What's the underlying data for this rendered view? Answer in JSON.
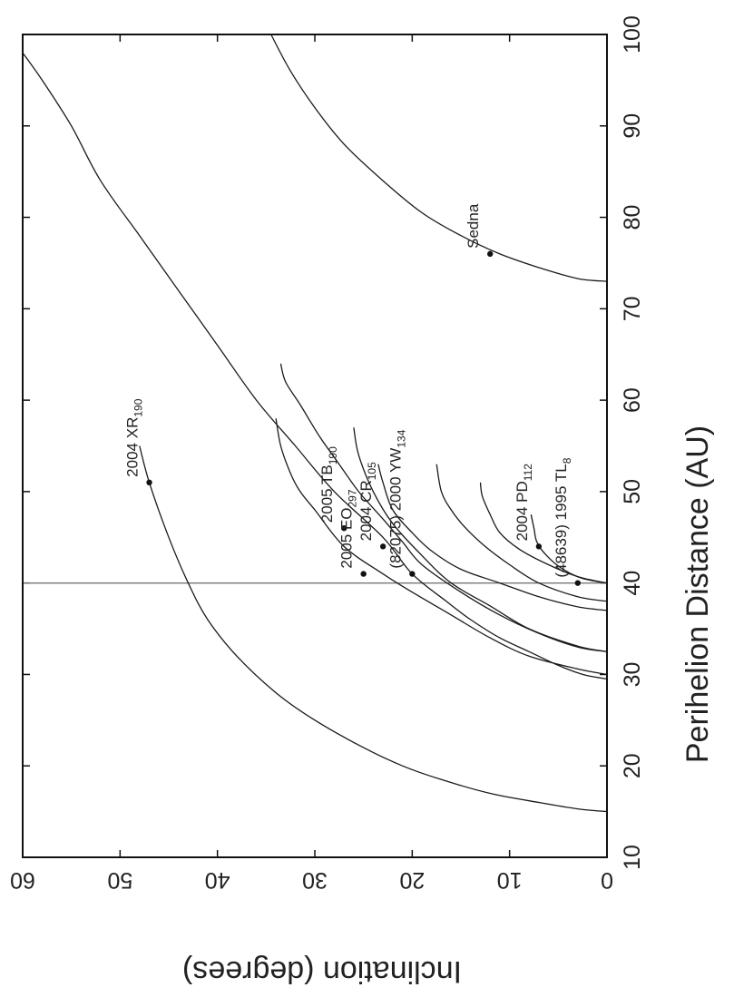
{
  "chart_data": {
    "type": "line",
    "title": "",
    "xlabel": "Perihelion Distance (AU)",
    "ylabel": "Inclination (degrees)",
    "xlim": [
      10,
      100
    ],
    "ylim": [
      0,
      60
    ],
    "xticks": [
      "10",
      "20",
      "30",
      "40",
      "50",
      "60",
      "70",
      "80",
      "90",
      "100"
    ],
    "yticks": [
      "0",
      "10",
      "20",
      "30",
      "40",
      "50",
      "60"
    ],
    "grid": false,
    "reference_lines": [
      {
        "axis": "x",
        "value": 40
      }
    ],
    "series": [
      {
        "name": "",
        "x": [
          15,
          15.3,
          16,
          17,
          18.5,
          20,
          22,
          25,
          28,
          32,
          36,
          40,
          45,
          51,
          55
        ],
        "y": [
          0,
          3,
          7,
          12,
          17,
          21,
          25,
          30,
          34,
          38,
          41,
          43,
          45,
          47,
          48
        ]
      },
      {
        "name": "",
        "x": [
          29.5,
          30,
          31,
          32.5,
          34,
          36,
          38,
          41,
          45,
          50,
          55,
          60,
          66,
          72,
          78,
          84,
          90,
          95,
          98
        ],
        "y": [
          0,
          2.5,
          5,
          8,
          11,
          14,
          16.5,
          20,
          23,
          28,
          32,
          36,
          40,
          44,
          48,
          52,
          55,
          58,
          60
        ]
      },
      {
        "name": "",
        "x": [
          30,
          30.6,
          32,
          34,
          36.5,
          39,
          41,
          44,
          48,
          50,
          52,
          55,
          58
        ],
        "y": [
          0,
          3,
          8,
          12,
          16,
          20,
          23,
          27,
          30,
          31.5,
          32.5,
          33.5,
          34
        ]
      },
      {
        "name": "",
        "x": [
          32.5,
          33,
          34.5,
          36.5,
          39,
          42,
          44.5,
          47,
          50,
          53,
          56,
          59.5,
          62,
          64
        ],
        "y": [
          0,
          3,
          7,
          11,
          15,
          19,
          21,
          23,
          25.5,
          27.5,
          29.5,
          31.5,
          33,
          33.5
        ]
      },
      {
        "name": "",
        "x": [
          32.5,
          33.1,
          35,
          37.5,
          40,
          43,
          46.5,
          50,
          54,
          57
        ],
        "y": [
          0,
          3,
          8,
          12,
          16,
          19,
          22,
          24,
          25.5,
          26
        ]
      },
      {
        "name": "",
        "x": [
          37,
          37.4,
          38.5,
          40,
          41.5,
          43.5,
          45.5,
          48,
          51,
          53
        ],
        "y": [
          0,
          3,
          7,
          11,
          15,
          18,
          20,
          22,
          23,
          23.5
        ]
      },
      {
        "name": "",
        "x": [
          38,
          38.5,
          40,
          42,
          44,
          46,
          48,
          50,
          53
        ],
        "y": [
          0,
          3,
          7,
          10,
          12.5,
          14.5,
          16,
          17,
          17.5
        ]
      },
      {
        "name": "",
        "x": [
          40,
          40.7,
          42,
          43.7,
          45.5,
          47.5,
          49.5,
          51
        ],
        "y": [
          0,
          3,
          6,
          9,
          11,
          12,
          12.8,
          13
        ]
      },
      {
        "name": "",
        "x": [
          40,
          40.5,
          41.5,
          43,
          44.5,
          46,
          47.5
        ],
        "y": [
          0,
          2.5,
          4.5,
          6.2,
          7.2,
          7.5,
          7.8
        ]
      },
      {
        "name": "",
        "x": [
          73,
          73.3,
          74.5,
          76,
          78,
          80.5,
          84,
          88,
          92,
          96,
          100
        ],
        "y": [
          0,
          3,
          7,
          11,
          15,
          19,
          23,
          27,
          30,
          32.5,
          34.5
        ]
      }
    ],
    "points": [
      {
        "label": "2004 XR",
        "sub": "190",
        "x": 51,
        "y": 47
      },
      {
        "label": "2005 TB",
        "sub": "190",
        "x": 46,
        "y": 27
      },
      {
        "label": "2005 EO",
        "sub": "297",
        "x": 41,
        "y": 25
      },
      {
        "label": "2004 CR",
        "sub": "105",
        "x": 44,
        "y": 23
      },
      {
        "label": "(82075) 2000 YW",
        "sub": "134",
        "x": 41,
        "y": 20
      },
      {
        "label": "2004 PD",
        "sub": "112",
        "x": 44,
        "y": 7
      },
      {
        "label": "(48639) 1995 TL",
        "sub": "8",
        "x": 40,
        "y": 3
      },
      {
        "label": "Sedna",
        "sub": "",
        "x": 76,
        "y": 12
      }
    ]
  }
}
